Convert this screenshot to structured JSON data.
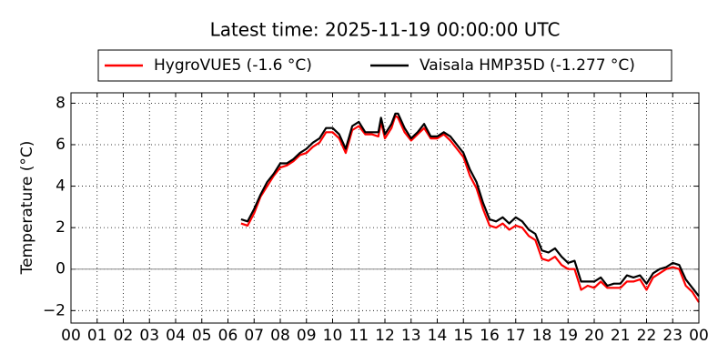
{
  "chart_data": {
    "type": "line",
    "title": "Latest time: 2025-11-19 00:00:00 UTC",
    "ylabel": "Temperature (°C)",
    "legend": "top",
    "grid": true,
    "xlim": [
      0,
      24
    ],
    "xticks": [
      {
        "value": 0,
        "label": "00"
      },
      {
        "value": 1,
        "label": "01"
      },
      {
        "value": 2,
        "label": "02"
      },
      {
        "value": 3,
        "label": "03"
      },
      {
        "value": 4,
        "label": "04"
      },
      {
        "value": 5,
        "label": "05"
      },
      {
        "value": 6,
        "label": "06"
      },
      {
        "value": 7,
        "label": "07"
      },
      {
        "value": 8,
        "label": "08"
      },
      {
        "value": 9,
        "label": "09"
      },
      {
        "value": 10,
        "label": "10"
      },
      {
        "value": 11,
        "label": "11"
      },
      {
        "value": 12,
        "label": "12"
      },
      {
        "value": 13,
        "label": "13"
      },
      {
        "value": 14,
        "label": "14"
      },
      {
        "value": 15,
        "label": "15"
      },
      {
        "value": 16,
        "label": "16"
      },
      {
        "value": 17,
        "label": "17"
      },
      {
        "value": 18,
        "label": "18"
      },
      {
        "value": 19,
        "label": "19"
      },
      {
        "value": 20,
        "label": "20"
      },
      {
        "value": 21,
        "label": "21"
      },
      {
        "value": 22,
        "label": "22"
      },
      {
        "value": 23,
        "label": "23"
      },
      {
        "value": 24,
        "label": "00"
      }
    ],
    "ylim": [
      -2.6,
      8.5
    ],
    "yticks": [
      {
        "value": -2,
        "label": "−2"
      },
      0,
      2,
      4,
      6,
      8
    ],
    "x": [
      6.5,
      6.75,
      7.0,
      7.25,
      7.5,
      7.75,
      8.0,
      8.25,
      8.5,
      8.75,
      9.0,
      9.25,
      9.5,
      9.75,
      10.0,
      10.25,
      10.5,
      10.75,
      11.0,
      11.25,
      11.5,
      11.75,
      11.85,
      12.0,
      12.25,
      12.4,
      12.5,
      12.75,
      13.0,
      13.25,
      13.5,
      13.75,
      14.0,
      14.25,
      14.5,
      14.75,
      15.0,
      15.25,
      15.5,
      15.75,
      16.0,
      16.25,
      16.5,
      16.75,
      17.0,
      17.25,
      17.5,
      17.75,
      18.0,
      18.25,
      18.5,
      18.75,
      19.0,
      19.25,
      19.5,
      19.75,
      20.0,
      20.25,
      20.5,
      20.75,
      21.0,
      21.25,
      21.5,
      21.75,
      22.0,
      22.25,
      22.5,
      22.75,
      23.0,
      23.25,
      23.5,
      23.75,
      24.0
    ],
    "series": [
      {
        "name": "HygroVUE5 (-1.6 °C)",
        "color": "#ff0000",
        "values": [
          2.2,
          2.1,
          2.7,
          3.5,
          4.0,
          4.5,
          4.9,
          5.0,
          5.2,
          5.5,
          5.6,
          5.9,
          6.1,
          6.6,
          6.6,
          6.3,
          5.6,
          6.7,
          6.9,
          6.5,
          6.5,
          6.4,
          7.1,
          6.3,
          6.8,
          7.4,
          7.3,
          6.6,
          6.2,
          6.5,
          6.8,
          6.3,
          6.3,
          6.5,
          6.2,
          5.8,
          5.4,
          4.5,
          3.9,
          2.9,
          2.1,
          2.0,
          2.2,
          1.9,
          2.1,
          2.0,
          1.6,
          1.4,
          0.5,
          0.4,
          0.6,
          0.2,
          0.0,
          0.0,
          -1.0,
          -0.8,
          -0.9,
          -0.6,
          -0.9,
          -0.9,
          -0.9,
          -0.6,
          -0.6,
          -0.5,
          -1.0,
          -0.4,
          -0.2,
          0.0,
          0.1,
          0.0,
          -0.8,
          -1.1,
          -1.6
        ]
      },
      {
        "name": "Vaisala HMP35D (-1.277 °C)",
        "color": "#000000",
        "values": [
          2.4,
          2.3,
          2.9,
          3.6,
          4.2,
          4.6,
          5.1,
          5.1,
          5.3,
          5.6,
          5.8,
          6.1,
          6.3,
          6.8,
          6.8,
          6.5,
          5.8,
          6.9,
          7.1,
          6.6,
          6.6,
          6.6,
          7.3,
          6.5,
          7.0,
          7.5,
          7.5,
          6.8,
          6.3,
          6.6,
          7.0,
          6.4,
          6.4,
          6.6,
          6.4,
          6.0,
          5.6,
          4.8,
          4.2,
          3.2,
          2.4,
          2.3,
          2.5,
          2.2,
          2.5,
          2.3,
          1.9,
          1.7,
          0.9,
          0.8,
          1.0,
          0.6,
          0.3,
          0.4,
          -0.6,
          -0.6,
          -0.6,
          -0.4,
          -0.8,
          -0.7,
          -0.7,
          -0.3,
          -0.4,
          -0.3,
          -0.7,
          -0.2,
          0.0,
          0.1,
          0.3,
          0.2,
          -0.5,
          -0.9,
          -1.3
        ]
      }
    ]
  }
}
